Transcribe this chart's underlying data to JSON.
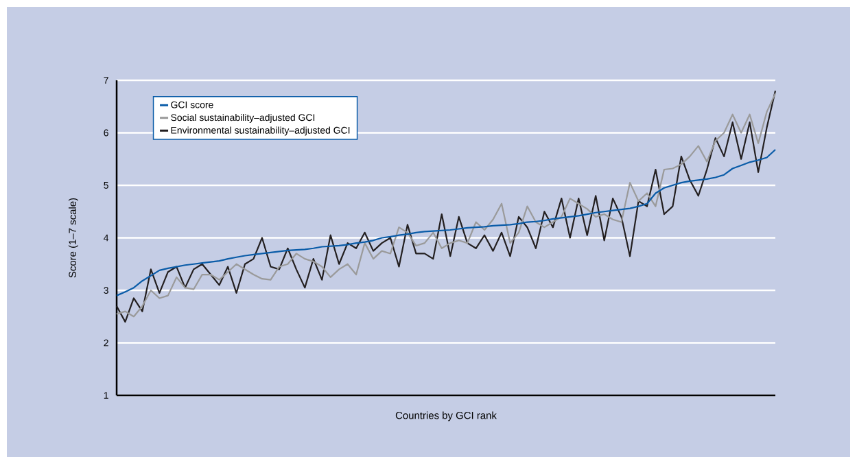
{
  "chart_data": {
    "type": "line",
    "xlabel": "Countries by GCI rank",
    "ylabel": "Score (1–7 scale)",
    "categories": [
      null,
      null,
      null,
      null,
      null,
      null,
      null,
      null,
      null,
      null,
      null,
      null,
      null,
      null,
      null,
      null,
      null,
      null,
      null,
      null,
      null,
      null,
      null,
      null,
      null,
      null,
      null,
      null,
      null,
      null,
      null,
      null,
      null,
      null,
      null,
      null,
      null,
      null,
      null,
      null,
      null,
      null,
      null,
      null,
      null,
      null,
      null,
      null,
      null,
      null,
      null,
      null,
      null,
      null,
      null,
      null,
      null,
      null,
      null,
      null,
      null,
      null,
      null,
      null,
      null,
      null,
      null,
      null,
      null,
      null,
      null,
      null,
      null,
      null,
      null,
      null,
      null,
      null
    ],
    "series": [
      {
        "name": "GCI score",
        "color": "#0a5ca8",
        "values": [
          2.9,
          2.97,
          3.05,
          3.18,
          3.28,
          3.38,
          3.42,
          3.45,
          3.48,
          3.5,
          3.52,
          3.54,
          3.56,
          3.6,
          3.63,
          3.66,
          3.68,
          3.7,
          3.72,
          3.74,
          3.76,
          3.77,
          3.78,
          3.8,
          3.83,
          3.84,
          3.85,
          3.87,
          3.9,
          3.92,
          3.95,
          4.0,
          4.02,
          4.05,
          4.07,
          4.1,
          4.12,
          4.13,
          4.14,
          4.15,
          4.17,
          4.19,
          4.2,
          4.21,
          4.23,
          4.24,
          4.25,
          4.27,
          4.3,
          4.31,
          4.33,
          4.36,
          4.38,
          4.4,
          4.42,
          4.45,
          4.48,
          4.5,
          4.52,
          4.54,
          4.56,
          4.6,
          4.65,
          4.85,
          4.95,
          5.0,
          5.05,
          5.08,
          5.1,
          5.12,
          5.15,
          5.2,
          5.32,
          5.38,
          5.44,
          5.48,
          5.53,
          5.68
        ]
      },
      {
        "name": "Social sustainability–adjusted GCI",
        "color": "#9a9a9a",
        "values": [
          2.55,
          2.6,
          2.5,
          2.7,
          3.0,
          2.85,
          2.9,
          3.25,
          3.05,
          3.02,
          3.3,
          3.3,
          3.2,
          3.35,
          3.5,
          3.4,
          3.3,
          3.22,
          3.2,
          3.45,
          3.5,
          3.7,
          3.6,
          3.55,
          3.45,
          3.25,
          3.4,
          3.5,
          3.3,
          3.9,
          3.6,
          3.75,
          3.7,
          4.2,
          4.1,
          3.85,
          3.9,
          4.1,
          3.8,
          3.9,
          3.95,
          3.9,
          4.3,
          4.15,
          4.35,
          4.65,
          3.9,
          4.1,
          4.6,
          4.3,
          4.2,
          4.3,
          4.4,
          4.75,
          4.65,
          4.55,
          4.4,
          4.45,
          4.35,
          4.3,
          5.05,
          4.7,
          4.85,
          4.6,
          5.3,
          5.32,
          5.4,
          5.55,
          5.75,
          5.45,
          5.85,
          6.0,
          6.35,
          6.0,
          6.35,
          5.8,
          6.4,
          6.75
        ]
      },
      {
        "name": "Environmental sustainability–adjusted GCI",
        "color": "#231f20",
        "values": [
          2.7,
          2.4,
          2.85,
          2.6,
          3.4,
          2.95,
          3.35,
          3.45,
          3.05,
          3.4,
          3.5,
          3.3,
          3.1,
          3.45,
          2.95,
          3.5,
          3.6,
          4.0,
          3.45,
          3.4,
          3.8,
          3.4,
          3.05,
          3.6,
          3.2,
          4.05,
          3.5,
          3.9,
          3.8,
          4.1,
          3.75,
          3.9,
          4.0,
          3.45,
          4.25,
          3.7,
          3.7,
          3.6,
          4.45,
          3.65,
          4.4,
          3.9,
          3.8,
          4.05,
          3.75,
          4.1,
          3.65,
          4.4,
          4.2,
          3.8,
          4.5,
          4.2,
          4.75,
          4.0,
          4.75,
          4.05,
          4.8,
          3.95,
          4.75,
          4.4,
          3.65,
          4.7,
          4.6,
          5.3,
          4.45,
          4.6,
          5.55,
          5.1,
          4.8,
          5.3,
          5.9,
          5.55,
          6.2,
          5.5,
          6.2,
          5.25,
          6.1,
          6.8
        ]
      }
    ],
    "ylim": [
      1,
      7
    ],
    "yticks": [
      1,
      2,
      3,
      4,
      5,
      6,
      7
    ],
    "grid": "y",
    "legend": "top left",
    "line_style": "solid",
    "marker": "none"
  }
}
